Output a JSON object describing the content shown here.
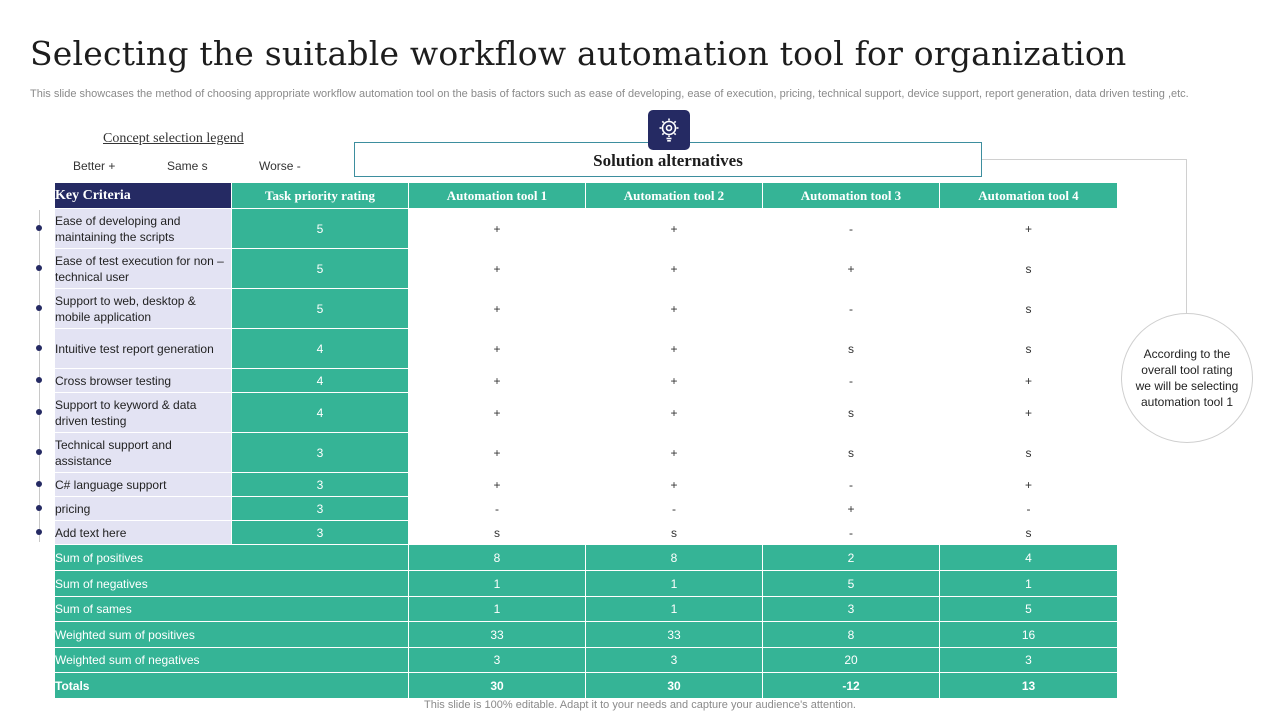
{
  "title": "Selecting the suitable workflow automation tool for organization",
  "subtitle": "This slide showcases the method of choosing appropriate workflow automation tool on the basis of factors such as ease of developing, ease of execution, pricing, technical support, device support, report generation, data driven testing ,etc.",
  "legend": {
    "title": "Concept  selection legend",
    "better": "Better +",
    "same": "Same s",
    "worse": "Worse -"
  },
  "solution_alternatives": "Solution alternatives",
  "gear_icon": "gear-lightbulb-icon",
  "conclusion": "According to the overall  tool rating we will be selecting automation tool 1",
  "colors": {
    "navy": "#252a63",
    "teal": "#35b496",
    "lavender": "#e3e3f3"
  },
  "table": {
    "headers": [
      "Key Criteria",
      "Task priority rating",
      "Automation tool 1",
      "Automation tool 2",
      "Automation tool 3",
      "Automation tool 4"
    ],
    "rows": [
      {
        "criteria": "Ease of developing  and maintaining the scripts",
        "rating": "5",
        "t1": "+",
        "t2": "+",
        "t3": "-",
        "t4": "+"
      },
      {
        "criteria": "Ease of test execution for non –technical user",
        "rating": "5",
        "t1": "+",
        "t2": "+",
        "t3": "+",
        "t4": "s"
      },
      {
        "criteria": "Support to web, desktop & mobile application",
        "rating": "5",
        "t1": "+",
        "t2": "+",
        "t3": "-",
        "t4": "s"
      },
      {
        "criteria": "Intuitive  test report generation",
        "rating": "4",
        "t1": "+",
        "t2": "+",
        "t3": "s",
        "t4": "s"
      },
      {
        "criteria": "Cross browser testing",
        "rating": "4",
        "t1": "+",
        "t2": "+",
        "t3": "-",
        "t4": "+"
      },
      {
        "criteria": "Support to keyword & data driven  testing",
        "rating": "4",
        "t1": "+",
        "t2": "+",
        "t3": "s",
        "t4": "+"
      },
      {
        "criteria": "Technical support and assistance",
        "rating": "3",
        "t1": "+",
        "t2": "+",
        "t3": "s",
        "t4": "s"
      },
      {
        "criteria": "C# language  support",
        "rating": "3",
        "t1": "+",
        "t2": "+",
        "t3": "-",
        "t4": "+"
      },
      {
        "criteria": "pricing",
        "rating": "3",
        "t1": "-",
        "t2": "-",
        "t3": "+",
        "t4": "-"
      },
      {
        "criteria": "Add text here",
        "rating": "3",
        "t1": "s",
        "t2": "s",
        "t3": "-",
        "t4": "s"
      }
    ],
    "summary": [
      {
        "label": "Sum of positives",
        "t1": "8",
        "t2": "8",
        "t3": "2",
        "t4": "4"
      },
      {
        "label": "Sum of negatives",
        "t1": "1",
        "t2": "1",
        "t3": "5",
        "t4": "1"
      },
      {
        "label": "Sum of sames",
        "t1": "1",
        "t2": "1",
        "t3": "3",
        "t4": "5"
      },
      {
        "label": "Weighted sum of positives",
        "t1": "33",
        "t2": "33",
        "t3": "8",
        "t4": "16"
      },
      {
        "label": "Weighted sum of negatives",
        "t1": "3",
        "t2": "3",
        "t3": "20",
        "t4": "3"
      },
      {
        "label": "Totals",
        "t1": "30",
        "t2": "30",
        "t3": "-12",
        "t4": "13"
      }
    ]
  },
  "footer": "This slide is 100% editable. Adapt it to your needs and capture your audience's attention."
}
